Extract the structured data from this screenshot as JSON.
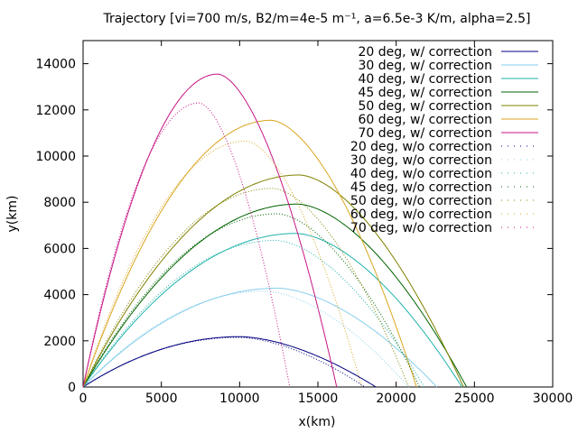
{
  "chart_data": {
    "type": "line",
    "title": "Trajectory [vi=700 m/s, B2/m=4e-5 m⁻¹, a=6.5e-3 K/m, alpha=2.5]",
    "xlabel": "x(km)",
    "ylabel": "y(km)",
    "xlim": [
      0,
      30000
    ],
    "ylim": [
      0,
      15000
    ],
    "xticks": [
      "0",
      "5000",
      "10000",
      "15000",
      "20000",
      "25000",
      "30000"
    ],
    "yticks": [
      "0",
      "2000",
      "4000",
      "6000",
      "8000",
      "10000",
      "12000",
      "14000"
    ],
    "grid": false,
    "legend_position": "top-right",
    "series": [
      {
        "name": "20 deg, w/ correction",
        "style": "solid",
        "color": "#000080",
        "range": 18700,
        "peak_x": 10000,
        "peak_y": 2180
      },
      {
        "name": "30 deg, w/ correction",
        "style": "solid",
        "color": "#87ceeb",
        "range": 22600,
        "peak_x": 12400,
        "peak_y": 4280
      },
      {
        "name": "40 deg, w/ correction",
        "style": "solid",
        "color": "#20b2aa",
        "range": 24200,
        "peak_x": 13600,
        "peak_y": 6650
      },
      {
        "name": "45 deg, w/ correction",
        "style": "solid",
        "color": "#006400",
        "range": 24500,
        "peak_x": 13700,
        "peak_y": 7920
      },
      {
        "name": "50 deg, w/ correction",
        "style": "solid",
        "color": "#808000",
        "range": 24300,
        "peak_x": 13800,
        "peak_y": 9180
      },
      {
        "name": "60 deg, w/ correction",
        "style": "solid",
        "color": "#daa520",
        "range": 21300,
        "peak_x": 12000,
        "peak_y": 11550
      },
      {
        "name": "70 deg, w/ correction",
        "style": "solid",
        "color": "#c71585",
        "range": 16200,
        "peak_x": 8600,
        "peak_y": 13550
      },
      {
        "name": "20 deg, w/o correction",
        "style": "dotted",
        "color": "#000080",
        "range": 18000,
        "peak_x": 9900,
        "peak_y": 2150
      },
      {
        "name": "30 deg, w/o correction",
        "style": "dotted",
        "color": "#87ceeb",
        "range": 20800,
        "peak_x": 11600,
        "peak_y": 4150
      },
      {
        "name": "40 deg, w/o correction",
        "style": "dotted",
        "color": "#20b2aa",
        "range": 21800,
        "peak_x": 12300,
        "peak_y": 6350
      },
      {
        "name": "45 deg, w/o correction",
        "style": "dotted",
        "color": "#006400",
        "range": 21500,
        "peak_x": 12400,
        "peak_y": 7500
      },
      {
        "name": "50 deg, w/o correction",
        "style": "dotted",
        "color": "#808000",
        "range": 20800,
        "peak_x": 12100,
        "peak_y": 8600
      },
      {
        "name": "60 deg, w/o correction",
        "style": "dotted",
        "color": "#daa520",
        "range": 17800,
        "peak_x": 10400,
        "peak_y": 10650
      },
      {
        "name": "70 deg, w/o correction",
        "style": "dotted",
        "color": "#c71585",
        "range": 13200,
        "peak_x": 7400,
        "peak_y": 12300
      }
    ]
  }
}
